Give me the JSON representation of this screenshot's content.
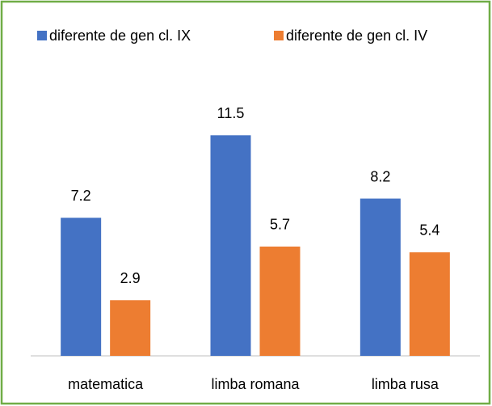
{
  "chart_data": {
    "type": "bar",
    "categories": [
      "matematica",
      "limba romana",
      "limba rusa"
    ],
    "series": [
      {
        "name": "diferente de gen cl. IX",
        "color": "#4472c4",
        "values": [
          7.2,
          11.5,
          8.2
        ]
      },
      {
        "name": "diferente de gen cl. IV",
        "color": "#ed7d31",
        "values": [
          2.9,
          5.7,
          5.4
        ]
      }
    ],
    "ylim": [
      0,
      14
    ],
    "legend": "top"
  }
}
